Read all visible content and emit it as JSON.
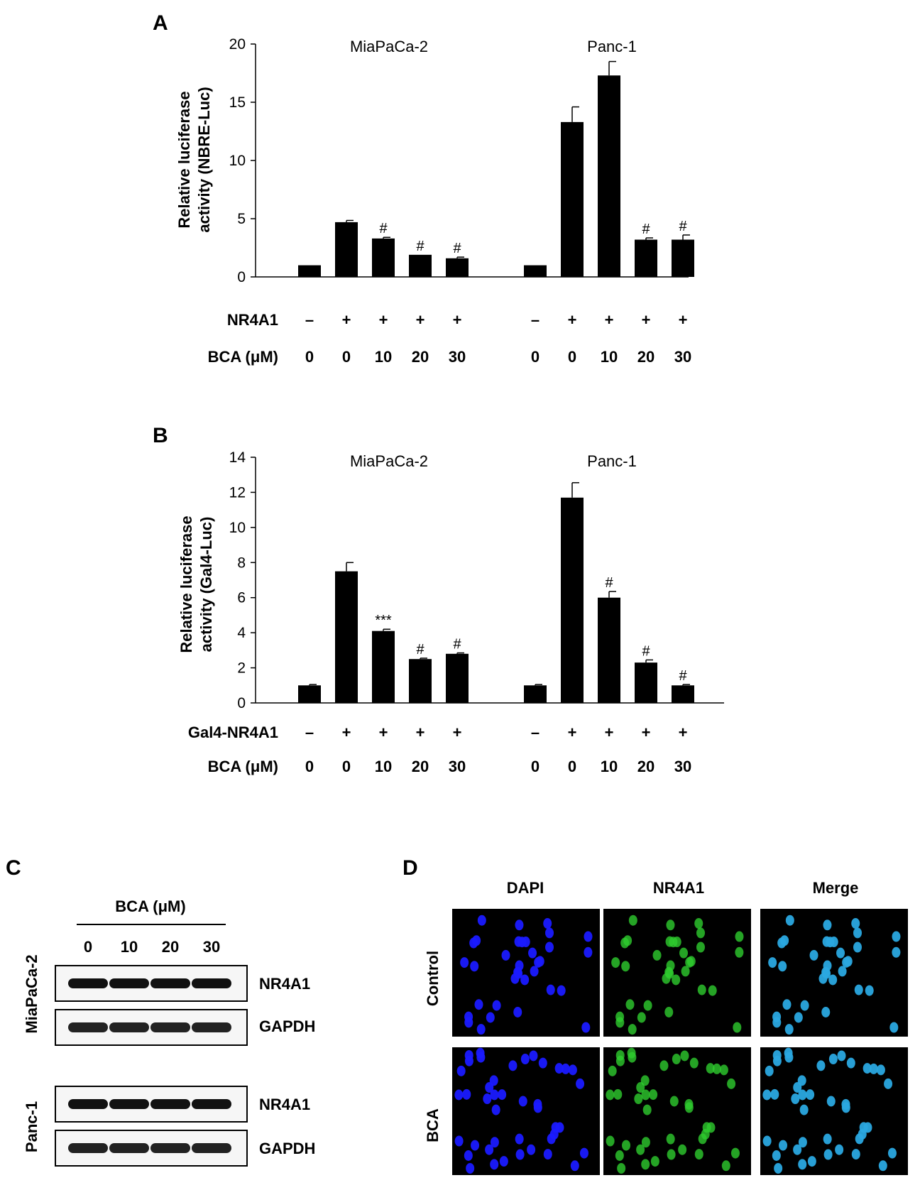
{
  "chart_data": [
    {
      "panel": "A",
      "type": "bar",
      "ylabel": "Relative luciferase activity (NBRE-Luc)",
      "ylabel_lines": [
        "Relative luciferase",
        "activity (NBRE-Luc)"
      ],
      "ylim": [
        0,
        20
      ],
      "yticks": [
        "0",
        "5",
        "10",
        "15",
        "20"
      ],
      "groups": [
        {
          "name": "MiaPaCa-2",
          "values": [
            1.0,
            4.7,
            3.3,
            1.9,
            1.6
          ],
          "errors": [
            0.0,
            0.15,
            0.1,
            0.0,
            0.1
          ],
          "marks": [
            "",
            "",
            "#",
            "#",
            "#"
          ]
        },
        {
          "name": "Panc-1",
          "values": [
            1.0,
            13.3,
            17.3,
            3.2,
            3.2
          ],
          "errors": [
            0.0,
            1.3,
            1.2,
            0.15,
            0.4
          ],
          "marks": [
            "",
            "",
            "",
            "#",
            "#"
          ]
        }
      ],
      "condition_rows": [
        {
          "label": "NR4A1",
          "values": [
            "–",
            "+",
            "+",
            "+",
            "+",
            "–",
            "+",
            "+",
            "+",
            "+"
          ]
        },
        {
          "label": "BCA (μM)",
          "values": [
            "0",
            "0",
            "10",
            "20",
            "30",
            "0",
            "0",
            "10",
            "20",
            "30"
          ]
        }
      ]
    },
    {
      "panel": "B",
      "type": "bar",
      "ylabel": "Relative luciferase activity (Gal4-Luc)",
      "ylabel_lines": [
        "Relative luciferase",
        "activity (Gal4-Luc)"
      ],
      "ylim": [
        0,
        14
      ],
      "yticks": [
        "0",
        "2",
        "4",
        "6",
        "8",
        "10",
        "12",
        "14"
      ],
      "groups": [
        {
          "name": "MiaPaCa-2",
          "values": [
            1.0,
            7.5,
            4.1,
            2.5,
            2.8
          ],
          "errors": [
            0.05,
            0.5,
            0.1,
            0.05,
            0.05
          ],
          "marks": [
            "",
            "",
            "***",
            "#",
            "#"
          ]
        },
        {
          "name": "Panc-1",
          "values": [
            1.0,
            11.7,
            6.0,
            2.3,
            1.0
          ],
          "errors": [
            0.05,
            0.85,
            0.35,
            0.15,
            0.05
          ],
          "marks": [
            "",
            "",
            "#",
            "#",
            "#"
          ]
        }
      ],
      "condition_rows": [
        {
          "label": "Gal4-NR4A1",
          "values": [
            "–",
            "+",
            "+",
            "+",
            "+",
            "–",
            "+",
            "+",
            "+",
            "+"
          ]
        },
        {
          "label": "BCA (μM)",
          "values": [
            "0",
            "0",
            "10",
            "20",
            "30",
            "0",
            "0",
            "10",
            "20",
            "30"
          ]
        }
      ]
    }
  ],
  "western_blot": {
    "panel": "C",
    "header": "BCA (μM)",
    "doses": [
      "0",
      "10",
      "20",
      "30"
    ],
    "cell_lines": [
      {
        "name": "MiaPaCa-2",
        "bands": [
          "NR4A1",
          "GAPDH"
        ]
      },
      {
        "name": "Panc-1",
        "bands": [
          "NR4A1",
          "GAPDH"
        ]
      }
    ]
  },
  "immunofluorescence": {
    "panel": "D",
    "columns": [
      "DAPI",
      "NR4A1",
      "Merge"
    ],
    "rows": [
      "Control",
      "BCA"
    ],
    "colors": {
      "dapi": "#1a1aff",
      "nr4a1": "#2ecc2e",
      "merge": "#2aa8e0"
    }
  }
}
